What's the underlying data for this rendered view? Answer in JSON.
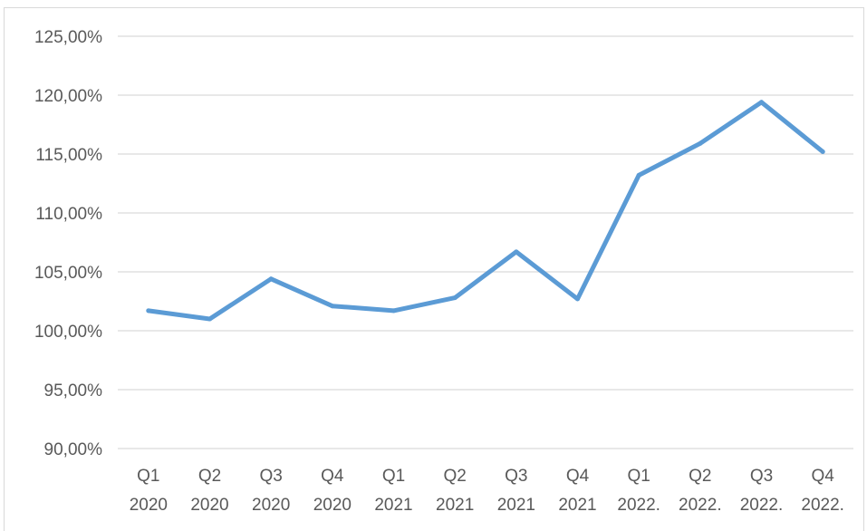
{
  "chart_data": {
    "type": "line",
    "categories": [
      [
        "Q1",
        "2020"
      ],
      [
        "Q2",
        "2020"
      ],
      [
        "Q3",
        "2020"
      ],
      [
        "Q4",
        "2020"
      ],
      [
        "Q1",
        "2021"
      ],
      [
        "Q2",
        "2021"
      ],
      [
        "Q3",
        "2021"
      ],
      [
        "Q4",
        "2021"
      ],
      [
        "Q1",
        "2022."
      ],
      [
        "Q2",
        "2022."
      ],
      [
        "Q3",
        "2022."
      ],
      [
        "Q4",
        "2022."
      ]
    ],
    "series": [
      {
        "values": [
          101.7,
          101.0,
          104.4,
          102.1,
          101.7,
          102.8,
          106.7,
          102.7,
          113.2,
          115.9,
          119.4,
          115.2
        ],
        "color": "#5b9bd5"
      }
    ],
    "yticks": [
      "90,00%",
      "95,00%",
      "100,00%",
      "105,00%",
      "110,00%",
      "115,00%",
      "120,00%",
      "125,00%"
    ],
    "ylim": [
      90,
      125
    ],
    "ystep": 5,
    "grid": true,
    "legend": "none",
    "colors": {
      "grid": "#d9d9d9",
      "text": "#595959"
    }
  }
}
